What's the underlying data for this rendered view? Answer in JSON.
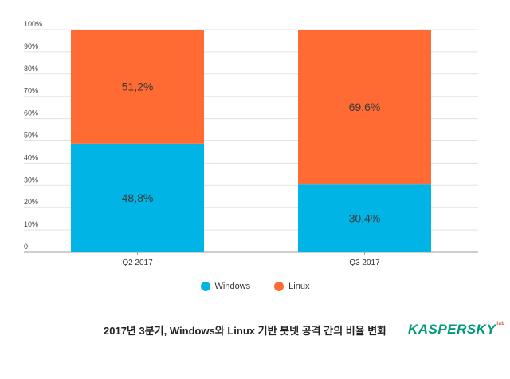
{
  "chart_data": {
    "type": "bar",
    "stacked": true,
    "categories": [
      "Q2 2017",
      "Q3 2017"
    ],
    "series": [
      {
        "name": "Windows",
        "values": [
          48.8,
          30.4
        ],
        "labels": [
          "48,8%",
          "30,4%"
        ],
        "color": "#00b4e6"
      },
      {
        "name": "Linux",
        "values": [
          51.2,
          69.6
        ],
        "labels": [
          "51,2%",
          "69,6%"
        ],
        "color": "#ff6b33"
      }
    ],
    "y_ticks": [
      "0",
      "10%",
      "20%",
      "30%",
      "40%",
      "50%",
      "60%",
      "70%",
      "80%",
      "90%",
      "100%"
    ],
    "ylim": [
      0,
      100
    ],
    "grid": true,
    "legend_position": "bottom"
  },
  "caption": "2017년 3분기, Windows와 Linux 기반 봇넷 공격 간의 비율 변화",
  "brand": {
    "name": "KASPERSKY",
    "sub": "lab"
  }
}
